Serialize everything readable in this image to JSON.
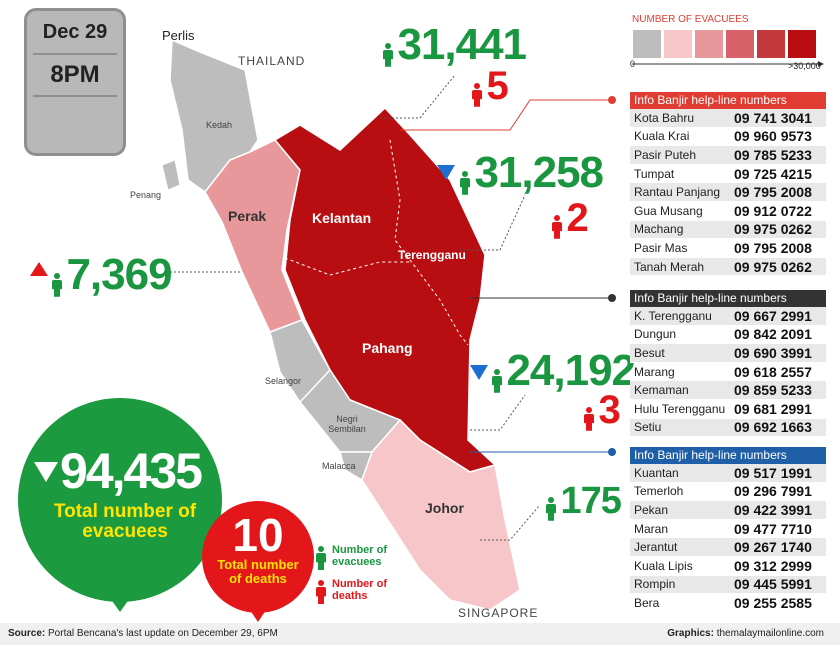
{
  "header": {
    "date": "Dec 29",
    "time": "8PM"
  },
  "legend": {
    "title": "NUMBER OF EVACUEES",
    "min_label": "0",
    "max_label": ">30,000",
    "colors": [
      "#bdbdbd",
      "#f6c6c8",
      "#e8989a",
      "#d9626a",
      "#c43a3c",
      "#b80e12"
    ]
  },
  "map_labels": [
    "Perlis",
    "THAILAND",
    "Kedah",
    "Penang",
    "Perak",
    "Kelantan",
    "Terengganu",
    "Pahang",
    "Selangor",
    "Negri Sembilan",
    "Malacca",
    "Johor",
    "SINGAPORE"
  ],
  "callouts": [
    {
      "evacuees": "31,441",
      "deaths": "5"
    },
    {
      "evacuees": "31,258",
      "deaths": "2"
    },
    {
      "evacuees": "7,369"
    },
    {
      "evacuees": "24,192",
      "deaths": "3"
    },
    {
      "evacuees": "175"
    }
  ],
  "totals": {
    "evacuees": {
      "value": "94,435",
      "label": "Total number of evacuees"
    },
    "deaths": {
      "value": "10",
      "label": "Total number of deaths"
    }
  },
  "key": {
    "evacuees": "Number of evacuees",
    "deaths": "Number of deaths"
  },
  "helplines": [
    {
      "title": "Info Banjir help-line numbers",
      "rows": [
        [
          "Kota Bahru",
          "09 741 3041"
        ],
        [
          "Kuala Krai",
          "09 960 9573"
        ],
        [
          "Pasir Puteh",
          "09 785 5233"
        ],
        [
          "Tumpat",
          "09 725 4215"
        ],
        [
          "Rantau Panjang",
          "09 795 2008"
        ],
        [
          "Gua Musang",
          "09 912 0722"
        ],
        [
          "Machang",
          "09 975 0262"
        ],
        [
          "Pasir Mas",
          "09 795 2008"
        ],
        [
          "Tanah Merah",
          "09 975 0262"
        ]
      ]
    },
    {
      "title": "Info Banjir help-line numbers",
      "rows": [
        [
          "K. Terengganu",
          "09 667 2991"
        ],
        [
          "Dungun",
          "09 842 2091"
        ],
        [
          "Besut",
          "09 690 3991"
        ],
        [
          "Marang",
          "09 618 2557"
        ],
        [
          "Kemaman",
          "09 859 5233"
        ],
        [
          "Hulu Terengganu",
          "09 681 2991"
        ],
        [
          "Setiu",
          "09 692 1663"
        ]
      ]
    },
    {
      "title": "Info Banjir help-line numbers",
      "rows": [
        [
          "Kuantan",
          "09 517 1991"
        ],
        [
          "Temerloh",
          "09 296 7991"
        ],
        [
          "Pekan",
          "09 422 3991"
        ],
        [
          "Maran",
          "09 477 7710"
        ],
        [
          "Jerantut",
          "09 267 1740"
        ],
        [
          "Kuala Lipis",
          "09 312 2999"
        ],
        [
          "Rompin",
          "09 445 5991"
        ],
        [
          "Bera",
          "09 255 2585"
        ]
      ]
    }
  ],
  "footer": {
    "source_label": "Source:",
    "source": "Portal Bencana's last update on December 29, 6PM",
    "credit_label": "Graphics:",
    "credit": "themalaymailonline.com"
  }
}
